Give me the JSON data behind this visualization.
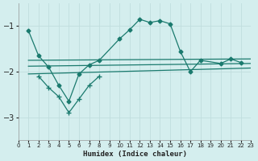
{
  "bg_color": "#d4eeee",
  "grid_color": "#c0dede",
  "line_color": "#1a7a6e",
  "xlabel": "Humidex (Indice chaleur)",
  "xlim": [
    0,
    23
  ],
  "ylim": [
    -3.5,
    -0.5
  ],
  "yticks": [
    -3,
    -2,
    -1
  ],
  "xticks": [
    0,
    1,
    2,
    3,
    4,
    5,
    6,
    7,
    8,
    9,
    10,
    11,
    12,
    13,
    14,
    15,
    16,
    17,
    18,
    19,
    20,
    21,
    22,
    23
  ],
  "main_curve_x": [
    1,
    2,
    3,
    4,
    5,
    6,
    7,
    8,
    10,
    11,
    12,
    13,
    14,
    15,
    16,
    17,
    18,
    20,
    21,
    22
  ],
  "main_curve_y": [
    -1.1,
    -1.65,
    -1.9,
    -2.3,
    -2.65,
    -2.05,
    -1.85,
    -1.75,
    -1.28,
    -1.08,
    -0.85,
    -0.92,
    -0.88,
    -0.95,
    -1.55,
    -2.0,
    -1.75,
    -1.82,
    -1.72,
    -1.8
  ],
  "line1_x": [
    1,
    23
  ],
  "line1_y": [
    -1.75,
    -1.72
  ],
  "line2_x": [
    1,
    23
  ],
  "line2_y": [
    -1.88,
    -1.82
  ],
  "line3_x": [
    1,
    23
  ],
  "line3_y": [
    -2.05,
    -1.92
  ],
  "bottom_curve_x": [
    2,
    3,
    4,
    5,
    6,
    7,
    8
  ],
  "bottom_curve_y": [
    -2.1,
    -2.35,
    -2.55,
    -2.9,
    -2.6,
    -2.3,
    -2.1
  ]
}
